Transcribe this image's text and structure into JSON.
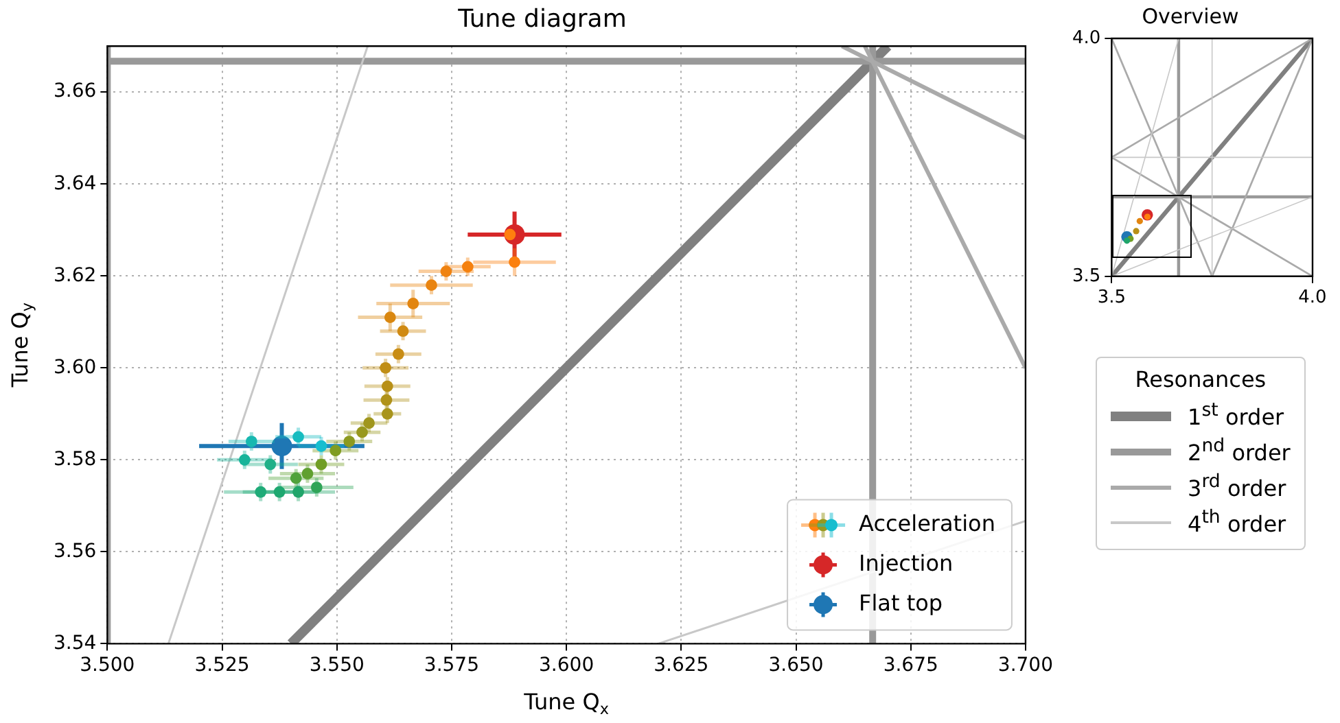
{
  "chart_data": [
    {
      "type": "scatter",
      "title": "Tune diagram",
      "xlabel": "Tune Q$_{x}$",
      "ylabel": "Tune Q$_{y}$",
      "xlim": [
        3.5,
        3.7
      ],
      "ylim": [
        3.54,
        3.67
      ],
      "xticks": [
        {
          "value": 3.5,
          "label": "3.500"
        },
        3.525,
        {
          "value": 3.55,
          "label": "3.550"
        },
        3.575,
        {
          "value": 3.6,
          "label": "3.600"
        },
        3.625,
        {
          "value": 3.65,
          "label": "3.650"
        },
        3.675,
        {
          "value": 3.7,
          "label": "3.700"
        }
      ],
      "yticks": [
        3.54,
        3.56,
        3.58,
        {
          "value": 3.6,
          "label": "3.60"
        },
        3.62,
        3.64,
        3.66
      ],
      "grid": true,
      "legend": "bottom right",
      "series": [
        {
          "type": "line",
          "color": "#c8c8c8",
          "x": [
            3.5133,
            3.5567
          ],
          "values": [
            3.54,
            3.67
          ]
        },
        {
          "type": "line",
          "color": "#c8c8c8",
          "x": [
            3.62,
            3.7
          ],
          "values": [
            3.54,
            3.5667
          ]
        },
        {
          "type": "line",
          "color": "#aaaaaa",
          "x": [
            3.665,
            3.7
          ],
          "values": [
            3.67,
            3.6
          ]
        },
        {
          "type": "line",
          "color": "#aaaaaa",
          "x": [
            3.66,
            3.7
          ],
          "values": [
            3.67,
            3.65
          ]
        },
        {
          "type": "line",
          "color": "#999999",
          "x": [
            3.5,
            3.5
          ],
          "values": [
            3.54,
            3.67
          ]
        },
        {
          "type": "line",
          "color": "#999999",
          "x": [
            3.6667,
            3.6667
          ],
          "values": [
            3.54,
            3.67
          ]
        },
        {
          "type": "line",
          "color": "#999999",
          "x": [
            3.5,
            3.7
          ],
          "values": [
            3.6667,
            3.6667
          ]
        },
        {
          "type": "line",
          "color": "#808080",
          "x": [
            3.54,
            3.67
          ],
          "values": [
            3.54,
            3.67
          ]
        },
        {
          "name": "Acceleration",
          "x": [
            3.5877,
            3.5887,
            3.5785,
            3.5738,
            3.5706,
            3.5666,
            3.5616,
            3.5644,
            3.5634,
            3.5606,
            3.561,
            3.5608,
            3.561,
            3.557,
            3.5555,
            3.5527,
            3.5497,
            3.5466,
            3.5436,
            3.5411,
            3.5456,
            3.5416,
            3.5375,
            3.5334,
            3.5355,
            3.5299,
            3.5314,
            3.5416,
            3.5466
          ],
          "values": [
            3.629,
            3.623,
            3.622,
            3.621,
            3.618,
            3.614,
            3.611,
            3.608,
            3.603,
            3.6,
            3.596,
            3.593,
            3.59,
            3.588,
            3.586,
            3.584,
            3.582,
            3.579,
            3.577,
            3.576,
            3.574,
            3.573,
            3.573,
            3.573,
            3.579,
            3.58,
            3.584,
            3.585,
            3.583
          ],
          "xerrors": [
            null,
            0.009,
            0.005,
            0.006,
            0.009,
            0.008,
            0.007,
            0.005,
            0.005,
            0.005,
            0.005,
            0.005,
            0.003,
            0.004,
            0.004,
            0.005,
            0.005,
            0.005,
            0.006,
            0.006,
            0.008,
            0.008,
            0.008,
            0.008,
            0.006,
            0.006,
            0.005,
            0.005,
            0.005
          ],
          "errors": [
            null,
            0.003,
            0.002,
            0.002,
            0.002,
            0.003,
            0.003,
            0.002,
            0.002,
            0.002,
            0.002,
            0.002,
            0.002,
            0.002,
            0.002,
            0.002,
            0.002,
            0.002,
            0.002,
            0.002,
            0.002,
            0.002,
            0.002,
            0.002,
            0.002,
            0.002,
            0.002,
            0.002,
            0.002
          ],
          "colors": [
            "#ff7f0e",
            "#fb800f",
            "#f5810f",
            "#ef8210",
            "#e98410",
            "#e28510",
            "#d98710",
            "#d08a12",
            "#c88c14",
            "#c08e16",
            "#b89018",
            "#b0921a",
            "#a8941c",
            "#a0961d",
            "#98981e",
            "#8c9a20",
            "#809c22",
            "#709e24",
            "#60a030",
            "#50a23c",
            "#30a458",
            "#20a56a",
            "#1ea870",
            "#1fab78",
            "#1fb088",
            "#18b49a",
            "#17b8b0",
            "#17bcc0",
            "#17becf"
          ]
        },
        {
          "name": "Injection",
          "color": "#d62728",
          "x": [
            3.5887
          ],
          "values": [
            3.629
          ],
          "xerrors": [
            0.0102
          ],
          "errors": [
            0.005
          ]
        },
        {
          "name": "Flat top",
          "color": "#1f77b4",
          "x": [
            3.538
          ],
          "values": [
            3.583
          ],
          "xerrors": [
            0.018
          ],
          "errors": [
            0.005
          ]
        }
      ]
    },
    {
      "type": "line",
      "title": "Overview",
      "xlim": [
        3.5,
        4.0
      ],
      "ylim": [
        3.5,
        4.0
      ],
      "xticks": [
        3.5,
        {
          "value": 4.0,
          "label": "4.0"
        }
      ],
      "yticks": [
        3.5,
        {
          "value": 4.0,
          "label": "4.0"
        }
      ],
      "legend": "bottom",
      "legend_title": "Resonances",
      "series": [
        {
          "name": "4$^{th}$ order",
          "color": "#c8c8c8",
          "x": [
            3.5,
            3.6667
          ],
          "values": [
            3.5,
            4.0
          ]
        },
        {
          "color": "#c8c8c8",
          "x": [
            3.5,
            4.0
          ],
          "values": [
            3.5,
            3.667
          ]
        },
        {
          "color": "#c8c8c8",
          "x": [
            3.75,
            3.75
          ],
          "values": [
            3.5,
            4.0
          ]
        },
        {
          "color": "#c8c8c8",
          "x": [
            3.5,
            4.0
          ],
          "values": [
            3.75,
            3.75
          ]
        },
        {
          "name": "3$^{rd}$ order",
          "color": "#aaaaaa",
          "x": [
            3.5,
            3.75
          ],
          "values": [
            4.0,
            3.5
          ]
        },
        {
          "color": "#aaaaaa",
          "x": [
            3.5,
            4.0
          ],
          "values": [
            3.75,
            3.5
          ]
        },
        {
          "color": "#aaaaaa",
          "x": [
            3.75,
            4.0
          ],
          "values": [
            3.5,
            4.0
          ]
        },
        {
          "color": "#aaaaaa",
          "x": [
            3.5,
            4.0
          ],
          "values": [
            3.75,
            4.0
          ]
        },
        {
          "name": "2$^{nd}$ order",
          "color": "#999999",
          "x": [
            3.6667,
            3.6667
          ],
          "values": [
            3.5,
            4.0
          ]
        },
        {
          "color": "#999999",
          "x": [
            3.5,
            4.0
          ],
          "values": [
            3.667,
            3.667
          ]
        },
        {
          "name": "1$^{st}$ order",
          "color": "#808080",
          "x": [
            3.5,
            4.0
          ],
          "values": [
            3.5,
            4.0
          ]
        },
        {
          "type": "scatter",
          "x": [
            3.589,
            3.57,
            3.561,
            3.547,
            3.538
          ],
          "values": [
            3.625,
            3.616,
            3.595,
            3.579,
            3.575
          ],
          "colors": [
            "#ff7f0e",
            "#e28510",
            "#b89018",
            "#709e24",
            "#20a56a"
          ]
        },
        {
          "type": "scatter",
          "color": "#d62728",
          "x": [
            3.5887
          ],
          "values": [
            3.629
          ]
        },
        {
          "type": "scatter",
          "color": "#1f77b4",
          "x": [
            3.538
          ],
          "values": [
            3.583
          ]
        }
      ]
    }
  ]
}
